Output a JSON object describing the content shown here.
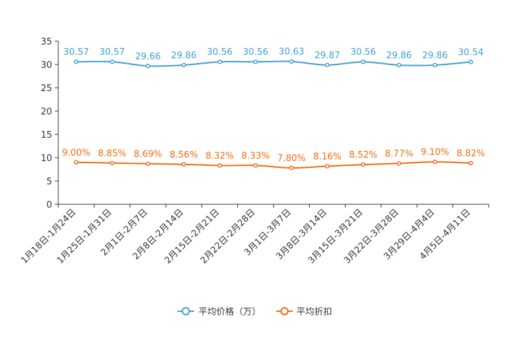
{
  "chart_data": {
    "type": "line",
    "title": "",
    "xlabel": "",
    "ylabel": "",
    "ylim": [
      0,
      35
    ],
    "yticks": [
      0,
      5,
      10,
      15,
      20,
      25,
      30,
      35
    ],
    "grid": false,
    "legend_position": "bottom-center",
    "categories": [
      "1月18日-1月24日",
      "1月25日-1月31日",
      "2月1日-2月7日",
      "2月8日-2月14日",
      "2月15日-2月21日",
      "2月22日-2月28日",
      "3月1日-3月7日",
      "3月8日-3月14日",
      "3月15日-3月21日",
      "3月22日-3月28日",
      "3月29日-4月4日",
      "4月5日-4月11日"
    ],
    "series": [
      {
        "name": "平均价格（万）",
        "color": "#3d9fd3",
        "values": [
          30.57,
          30.57,
          29.66,
          29.86,
          30.56,
          30.56,
          30.63,
          29.87,
          30.56,
          29.86,
          29.86,
          30.54
        ],
        "labels": [
          "30.57",
          "30.57",
          "29.66",
          "29.86",
          "30.56",
          "30.56",
          "30.63",
          "29.87",
          "30.56",
          "29.86",
          "29.86",
          "30.54"
        ]
      },
      {
        "name": "平均折扣",
        "color": "#f06c0f",
        "values": [
          9.0,
          8.85,
          8.69,
          8.56,
          8.32,
          8.33,
          7.8,
          8.16,
          8.52,
          8.77,
          9.1,
          8.82
        ],
        "labels": [
          "9.00%",
          "8.85%",
          "8.69%",
          "8.56%",
          "8.32%",
          "8.33%",
          "7.80%",
          "8.16%",
          "8.52%",
          "8.77%",
          "9.10%",
          "8.82%"
        ]
      }
    ]
  }
}
